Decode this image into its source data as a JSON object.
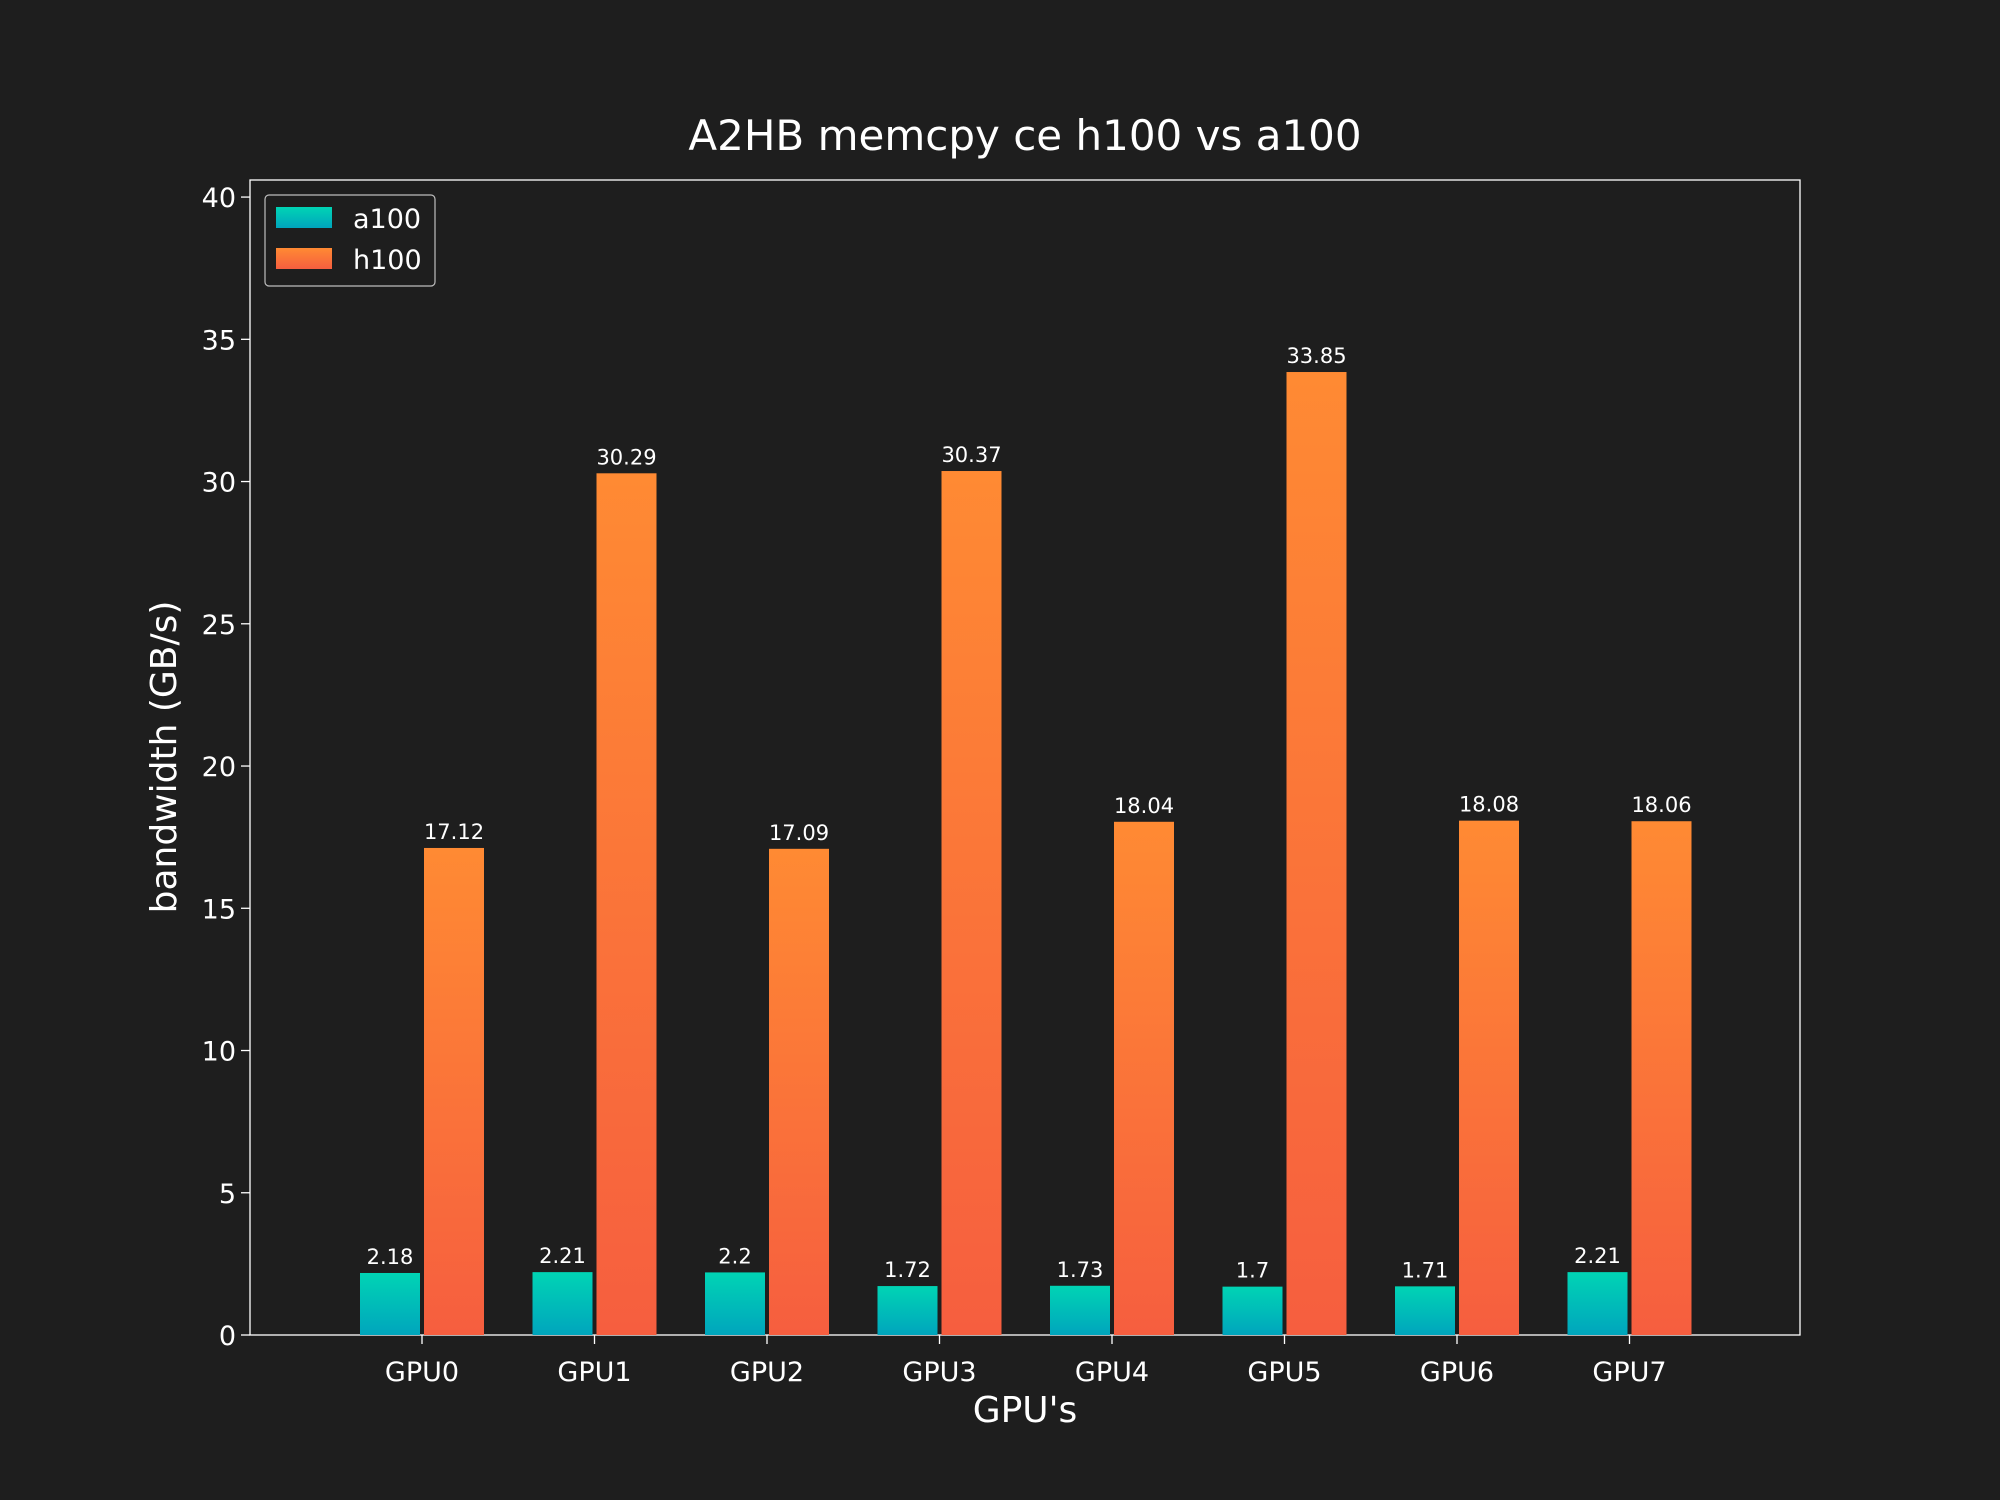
{
  "chart_data": {
    "type": "bar",
    "title": "A2HB memcpy ce h100 vs a100",
    "xlabel": "GPU's",
    "ylabel": "bandwidth (GB/s)",
    "categories": [
      "GPU0",
      "GPU1",
      "GPU2",
      "GPU3",
      "GPU4",
      "GPU5",
      "GPU6",
      "GPU7"
    ],
    "series": [
      {
        "name": "a100",
        "values": [
          2.18,
          2.21,
          2.2,
          1.72,
          1.73,
          1.7,
          1.71,
          2.21
        ],
        "labels": [
          "2.18",
          "2.21",
          "2.2",
          "1.72",
          "1.73",
          "1.7",
          "1.71",
          "2.21"
        ],
        "color_top": "#00d4b4",
        "color_bottom": "#00a5bd"
      },
      {
        "name": "h100",
        "values": [
          17.12,
          30.29,
          17.09,
          30.37,
          18.04,
          33.85,
          18.08,
          18.06
        ],
        "labels": [
          "17.12",
          "30.29",
          "17.09",
          "30.37",
          "18.04",
          "33.85",
          "18.08",
          "18.06"
        ],
        "color_top": "#ff8a33",
        "color_bottom": "#f65e3f"
      }
    ],
    "ylim": [
      0,
      40.6
    ],
    "yticks": [
      0,
      5,
      10,
      15,
      20,
      25,
      30,
      35,
      40
    ],
    "ytick_labels": [
      "0",
      "5",
      "10",
      "15",
      "20",
      "25",
      "30",
      "35",
      "40"
    ],
    "grid": false,
    "legend_position": "top-left",
    "colors": {
      "background": "#1e1e1e",
      "text": "#ffffff",
      "axes_edge": "#ffffff"
    }
  }
}
